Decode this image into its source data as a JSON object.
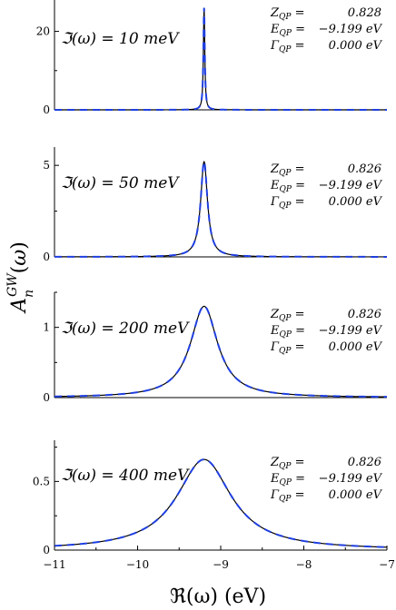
{
  "chart_data": {
    "type": "line",
    "xlabel": "ℜ(ω) (eV)",
    "ylabel": "A_n^GW(ω)",
    "xlim": [
      -11,
      -7
    ],
    "xticks": [
      -11,
      -10,
      -9,
      -8,
      -7
    ],
    "grid": false,
    "line_colors": {
      "solid": "#000000",
      "dashed": "#1f3fe0",
      "dashed_accent": "#d9a400"
    },
    "panels": [
      {
        "label": "ℑ(ω) = 10 meV",
        "broadening_meV": 10,
        "ylim": [
          0,
          28
        ],
        "yticks": [
          {
            "v": 0,
            "t": "0"
          },
          {
            "v": 20,
            "t": "20"
          }
        ],
        "annotation": {
          "Z_QP": "0.828",
          "E_QP": "−9.199 eV",
          "Gamma_QP": "0.000 eV"
        },
        "peak_x": -9.2,
        "peak_y": 26
      },
      {
        "label": "ℑ(ω) = 50 meV",
        "broadening_meV": 50,
        "ylim": [
          0,
          6
        ],
        "yticks": [
          {
            "v": 0,
            "t": "0"
          },
          {
            "v": 5,
            "t": "5"
          }
        ],
        "annotation": {
          "Z_QP": "0.826",
          "E_QP": "−9.199 eV",
          "Gamma_QP": "0.000 eV"
        },
        "peak_x": -9.2,
        "peak_y": 5.2
      },
      {
        "label": "ℑ(ω) = 200 meV",
        "broadening_meV": 200,
        "ylim": [
          0,
          1.5
        ],
        "yticks": [
          {
            "v": 0,
            "t": "0"
          },
          {
            "v": 1,
            "t": "1"
          }
        ],
        "annotation": {
          "Z_QP": "0.826",
          "E_QP": "−9.199 eV",
          "Gamma_QP": "0.000 eV"
        },
        "peak_x": -9.2,
        "peak_y": 1.3
      },
      {
        "label": "ℑ(ω) = 400 meV",
        "broadening_meV": 400,
        "ylim": [
          0,
          0.8
        ],
        "yticks": [
          {
            "v": 0,
            "t": "0"
          },
          {
            "v": 0.5,
            "t": "0.5"
          }
        ],
        "annotation": {
          "Z_QP": "0.826",
          "E_QP": "−9.199 eV",
          "Gamma_QP": "0.000 eV"
        },
        "peak_x": -9.2,
        "peak_y": 0.66
      }
    ]
  }
}
